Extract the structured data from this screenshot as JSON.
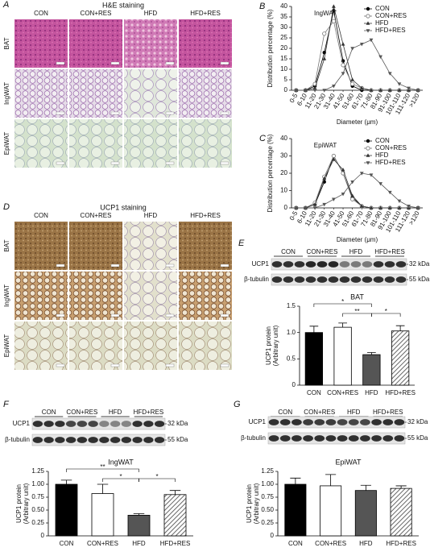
{
  "chart_data": [
    {
      "type": "line",
      "title": "IngWAT",
      "ylabel": "Distribution percentage (%)",
      "xlabel": "Diameter (μm)",
      "categories": [
        "0-5",
        "6-10",
        "11-20",
        "21-30",
        "31-40",
        "41-50",
        "51-60",
        "61-70",
        "71-80",
        "81-90",
        "91-100",
        "101-110",
        "111-120",
        ">120"
      ],
      "ylim": [
        0,
        40
      ],
      "yticks": [
        0,
        5,
        10,
        15,
        20,
        25,
        30,
        35,
        40
      ],
      "legend": "top-right",
      "series": [
        {
          "name": "CON",
          "color": "#000000",
          "marker": "circle",
          "values": [
            0,
            0,
            2,
            18,
            38,
            14,
            2,
            0,
            0,
            0,
            0,
            0,
            0,
            0
          ]
        },
        {
          "name": "CON+RES",
          "color": "#777777",
          "marker": "open-circle",
          "values": [
            0,
            0,
            3,
            27,
            33,
            12,
            3,
            1,
            0,
            0,
            0,
            0,
            0,
            0
          ]
        },
        {
          "name": "HFD",
          "color": "#333333",
          "marker": "triangle",
          "values": [
            0,
            0,
            1,
            15,
            40,
            22,
            5,
            1,
            0,
            0,
            0,
            0,
            0,
            0
          ]
        },
        {
          "name": "HFD+RES",
          "color": "#555555",
          "marker": "triangle-down",
          "values": [
            0,
            0,
            0,
            0,
            2,
            8,
            20,
            22,
            24,
            16,
            8,
            3,
            1,
            0
          ]
        }
      ]
    },
    {
      "type": "line",
      "title": "EpiWAT",
      "ylabel": "Distribution percentage (%)",
      "xlabel": "Diameter (μm)",
      "categories": [
        "0-5",
        "6-10",
        "11-20",
        "21-30",
        "31-40",
        "41-50",
        "51-60",
        "61-70",
        "71-80",
        "81-90",
        "91-100",
        "101-110",
        "111-120",
        ">120"
      ],
      "ylim": [
        0,
        40
      ],
      "yticks": [
        0,
        10,
        20,
        30,
        40
      ],
      "legend": "top-right",
      "series": [
        {
          "name": "CON",
          "color": "#000000",
          "marker": "circle",
          "values": [
            0,
            0,
            2,
            15,
            30,
            20,
            6,
            1,
            0,
            0,
            0,
            0,
            0,
            0
          ]
        },
        {
          "name": "CON+RES",
          "color": "#777777",
          "marker": "open-circle",
          "values": [
            0,
            0,
            3,
            18,
            30,
            20,
            5,
            1,
            0,
            0,
            0,
            0,
            0,
            0
          ]
        },
        {
          "name": "HFD",
          "color": "#333333",
          "marker": "triangle",
          "values": [
            0,
            0,
            2,
            17,
            28,
            22,
            7,
            1,
            0,
            0,
            0,
            0,
            0,
            0
          ]
        },
        {
          "name": "HFD+RES",
          "color": "#555555",
          "marker": "triangle-down",
          "values": [
            0,
            0,
            0,
            2,
            5,
            8,
            15,
            20,
            19,
            14,
            9,
            4,
            1,
            0
          ]
        }
      ]
    },
    {
      "type": "bar",
      "title": "BAT",
      "ylabel": [
        "UCP1 protein",
        "(Arbitrary unit)"
      ],
      "categories": [
        "CON",
        "CON+RES",
        "HFD",
        "HFD+RES"
      ],
      "values": [
        1.0,
        1.1,
        0.58,
        1.03
      ],
      "errors": [
        0.12,
        0.08,
        0.04,
        0.1
      ],
      "colors": [
        "#000000",
        "#ffffff",
        "#555555",
        "#999999"
      ],
      "patterns": [
        "solid",
        "solid",
        "solid",
        "hatch"
      ],
      "ylim": [
        0,
        1.5
      ],
      "yticks": [
        0,
        0.5,
        {
          "value": 1,
          "label": "1.0"
        },
        1.5
      ],
      "annotations": [
        "*",
        "**",
        "*"
      ]
    },
    {
      "type": "bar",
      "title": "IngWAT",
      "ylabel": [
        "UCP1 protein",
        "(Arbitrary unit)"
      ],
      "categories": [
        "CON",
        "CON+RES",
        "HFD",
        "HFD+RES"
      ],
      "values": [
        1.0,
        0.82,
        0.4,
        0.8
      ],
      "errors": [
        0.08,
        0.18,
        0.03,
        0.08
      ],
      "colors": [
        "#000000",
        "#ffffff",
        "#555555",
        "#999999"
      ],
      "patterns": [
        "solid",
        "solid",
        "solid",
        "hatch"
      ],
      "ylim": [
        0,
        1.25
      ],
      "yticks": [
        0,
        0.25,
        {
          "value": 0.5,
          "label": "0.50"
        },
        0.75,
        {
          "value": 1,
          "label": "1.00"
        },
        1.25
      ],
      "annotations": [
        "**",
        "*",
        "*"
      ]
    },
    {
      "type": "bar",
      "title": "EpiWAT",
      "ylabel": [
        "UCP1 protein",
        "(Arbitrary unit)"
      ],
      "categories": [
        "CON",
        "CON+RES",
        "HFD",
        "HFD+RES"
      ],
      "values": [
        1.0,
        0.97,
        0.88,
        0.92
      ],
      "errors": [
        0.12,
        0.22,
        0.1,
        0.05
      ],
      "colors": [
        "#000000",
        "#ffffff",
        "#555555",
        "#999999"
      ],
      "patterns": [
        "solid",
        "solid",
        "solid",
        "hatch"
      ],
      "ylim": [
        0,
        1.25
      ],
      "yticks": [
        0,
        0.25,
        {
          "value": 0.5,
          "label": "0.50"
        },
        0.75,
        {
          "value": 1,
          "label": "1.00"
        },
        1.25
      ]
    }
  ],
  "panels": {
    "A": {
      "letter": "A",
      "title": "H&E staining",
      "columns": [
        "CON",
        "CON+RES",
        "HFD",
        "HFD+RES"
      ],
      "rows": [
        "BAT",
        "IngWAT",
        "EpiWAT"
      ]
    },
    "B": {
      "letter": "B"
    },
    "C": {
      "letter": "C"
    },
    "D": {
      "letter": "D",
      "title": "UCP1 staining",
      "columns": [
        "CON",
        "CON+RES",
        "HFD",
        "HFD+RES"
      ],
      "rows": [
        "BAT",
        "IngWAT",
        "EpiWAT"
      ]
    },
    "E": {
      "letter": "E",
      "groups": [
        "CON",
        "CON+RES",
        "HFD",
        "HFD+RES"
      ],
      "bands": [
        "UCP1",
        "β-tubulin"
      ],
      "sizes": [
        "32 kDa",
        "55 kDa"
      ]
    },
    "F": {
      "letter": "F",
      "groups": [
        "CON",
        "CON+RES",
        "HFD",
        "HFD+RES"
      ],
      "bands": [
        "UCP1",
        "β-tubulin"
      ],
      "sizes": [
        "32 kDa",
        "55 kDa"
      ]
    },
    "G": {
      "letter": "G",
      "groups": [
        "CON",
        "CON+RES",
        "HFD",
        "HFD+RES"
      ],
      "bands": [
        "UCP1",
        "β-tubulin"
      ],
      "sizes": [
        "32 kDa",
        "55 kDa"
      ]
    }
  }
}
